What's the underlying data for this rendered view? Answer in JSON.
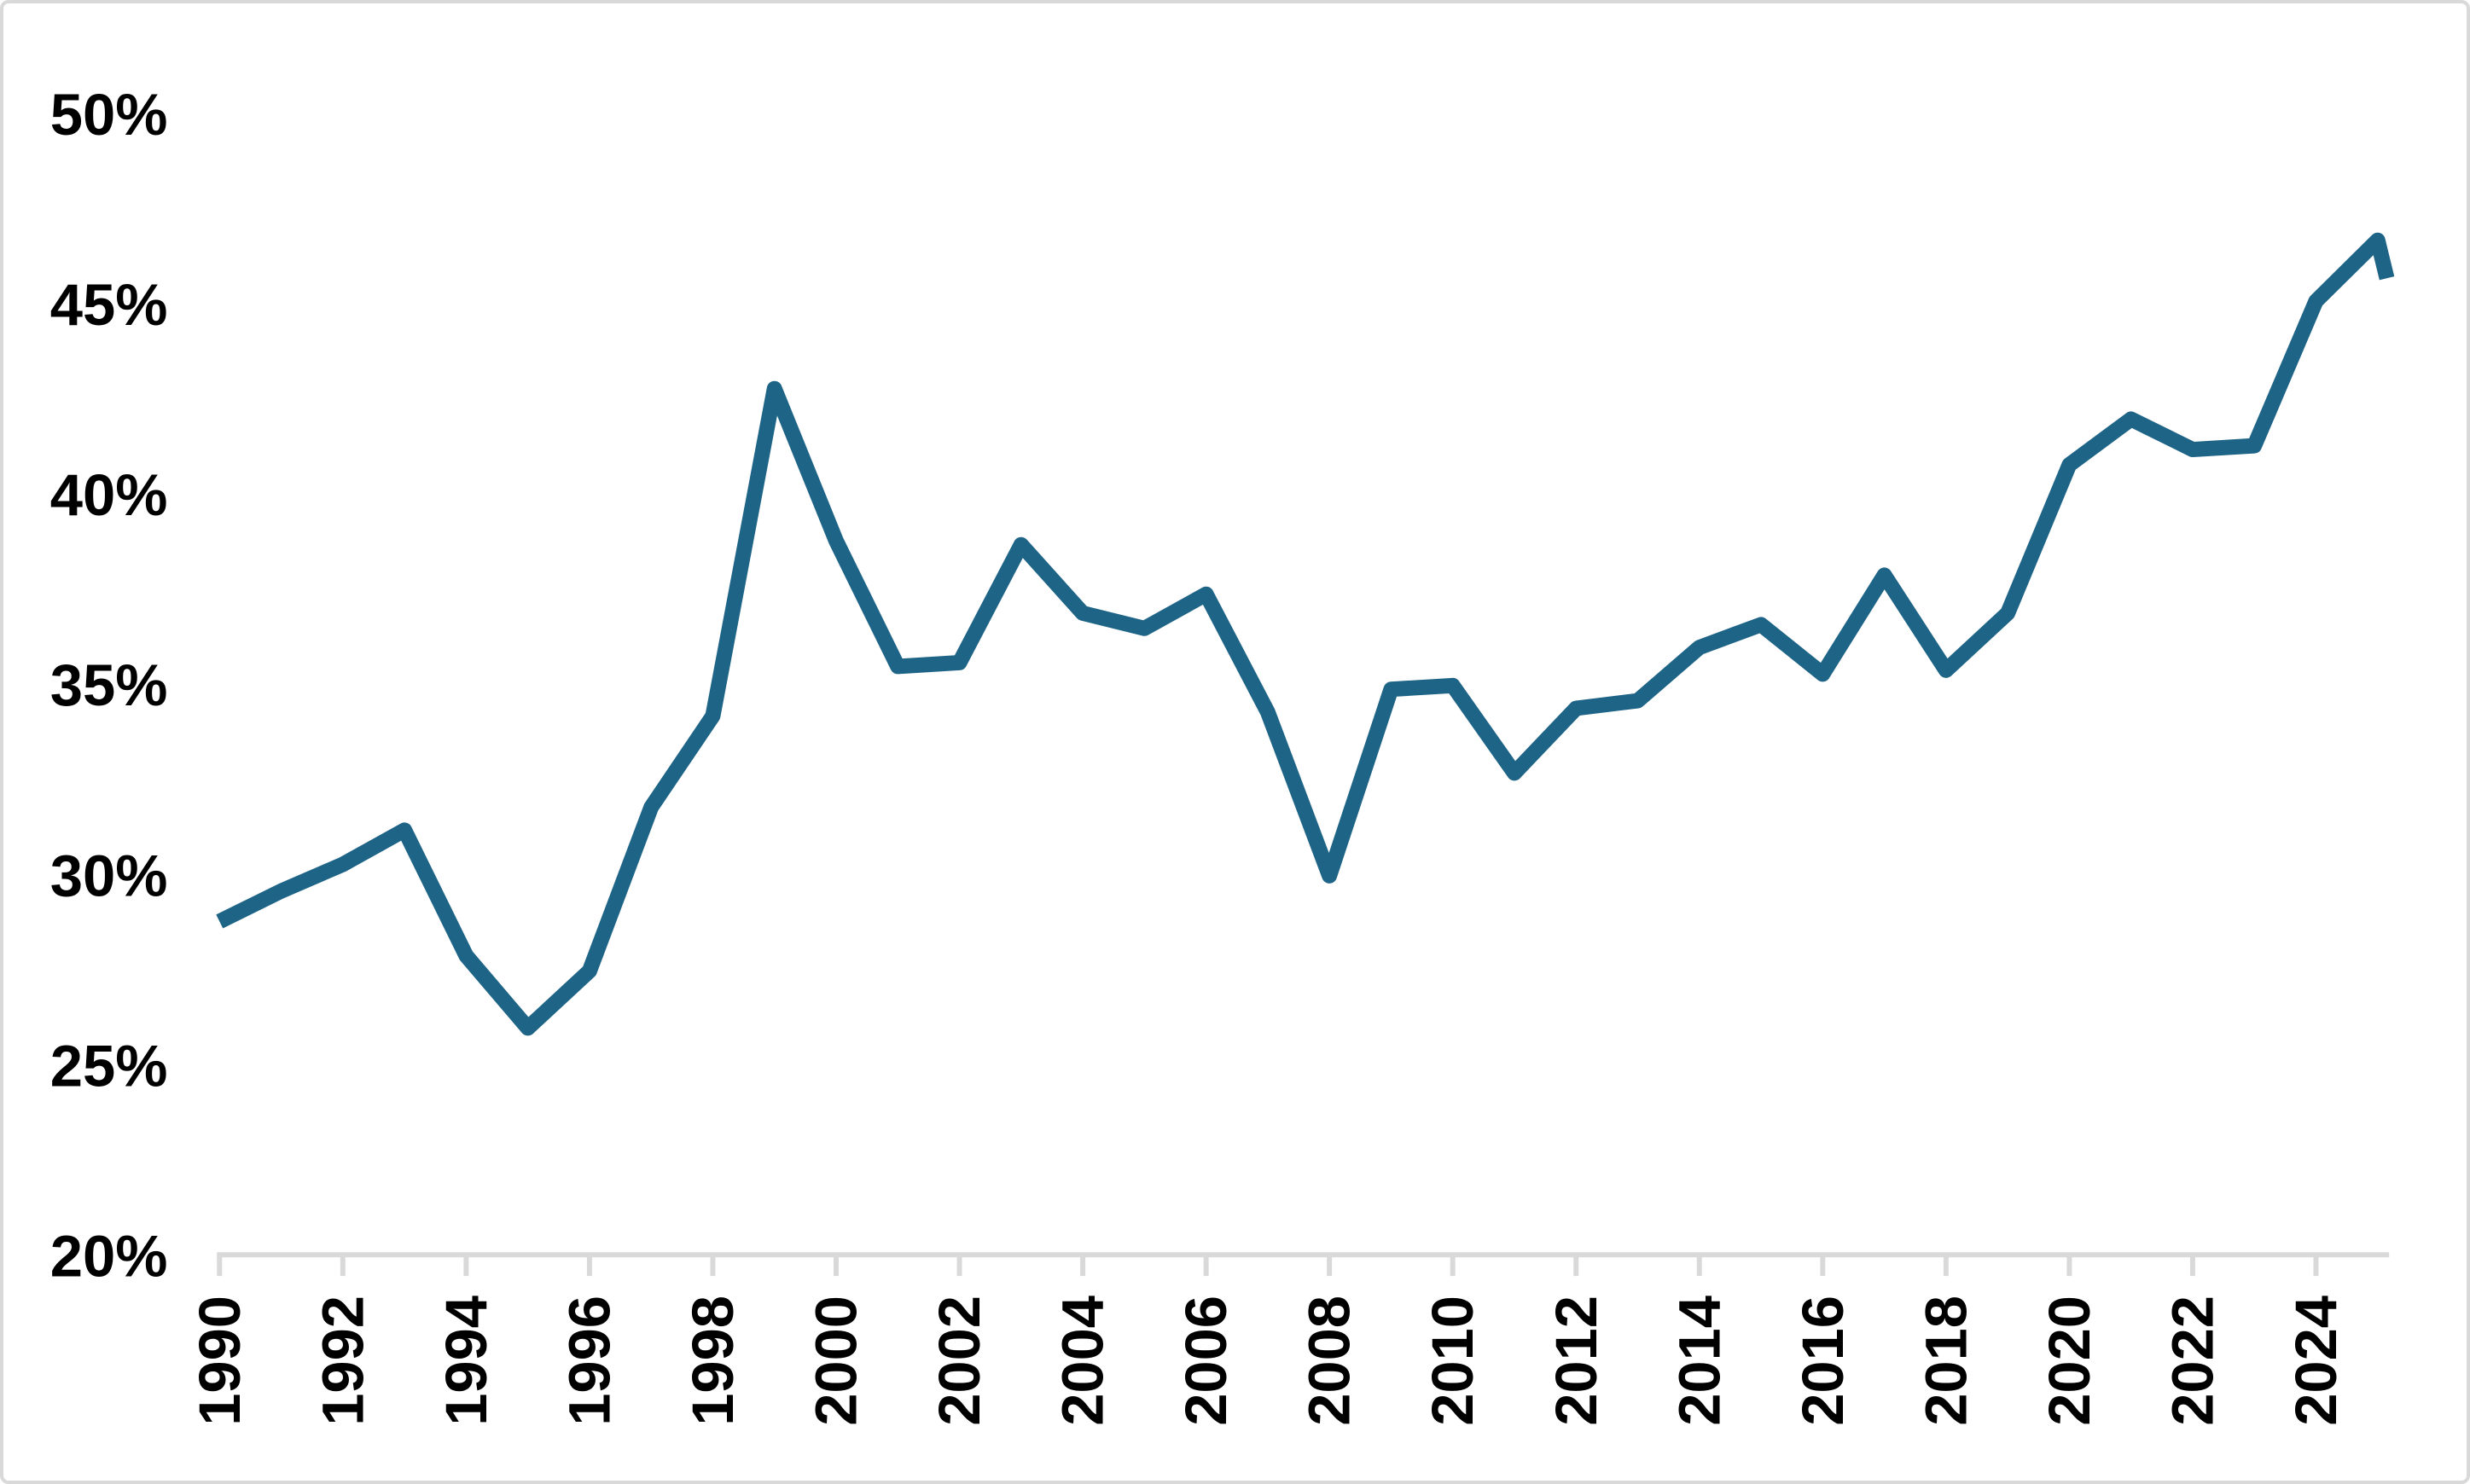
{
  "chart_data": {
    "type": "line",
    "title": "",
    "xlabel": "",
    "ylabel": "",
    "ylim": [
      20,
      50
    ],
    "grid": false,
    "legend": false,
    "x": [
      1990,
      1991,
      1992,
      1993,
      1994,
      1995,
      1996,
      1997,
      1998,
      1999,
      2000,
      2001,
      2002,
      2003,
      2004,
      2005,
      2006,
      2007,
      2008,
      2009,
      2010,
      2011,
      2012,
      2013,
      2014,
      2015,
      2016,
      2017,
      2018,
      2019,
      2020,
      2021,
      2022,
      2023,
      2024,
      2025
    ],
    "values": [
      28.8,
      29.6,
      30.3,
      31.2,
      27.9,
      26.0,
      27.5,
      31.8,
      34.2,
      42.8,
      38.8,
      35.5,
      35.6,
      38.7,
      36.9,
      36.5,
      37.4,
      34.3,
      30.0,
      34.9,
      35.0,
      32.7,
      34.4,
      34.6,
      36.0,
      36.6,
      35.3,
      37.9,
      35.4,
      36.9,
      40.8,
      42.0,
      41.2,
      41.3,
      45.1,
      46.7
    ],
    "final_partial_point": {
      "x": 2025.15,
      "value": 45.7
    },
    "y_tick_values": [
      50,
      45,
      40,
      35,
      30,
      25,
      20
    ],
    "y_tick_labels": [
      "50%",
      "45%",
      "40%",
      "35%",
      "30%",
      "25%",
      "20%"
    ],
    "x_tick_years": [
      1990,
      1992,
      1994,
      1996,
      1998,
      2000,
      2002,
      2004,
      2006,
      2008,
      2010,
      2012,
      2014,
      2016,
      2018,
      2020,
      2022,
      2024
    ],
    "x_tick_labels": [
      "1990",
      "1992",
      "1994",
      "1996",
      "1998",
      "2000",
      "2002",
      "2004",
      "2006",
      "2008",
      "2010",
      "2012",
      "2014",
      "2016",
      "2018",
      "2020",
      "2022",
      "2024"
    ],
    "colors": {
      "line": "#1E6487",
      "axis": "#D9D9D9",
      "labels": "#000000",
      "background": "#FFFFFF",
      "border": "#D9D9D9"
    }
  }
}
